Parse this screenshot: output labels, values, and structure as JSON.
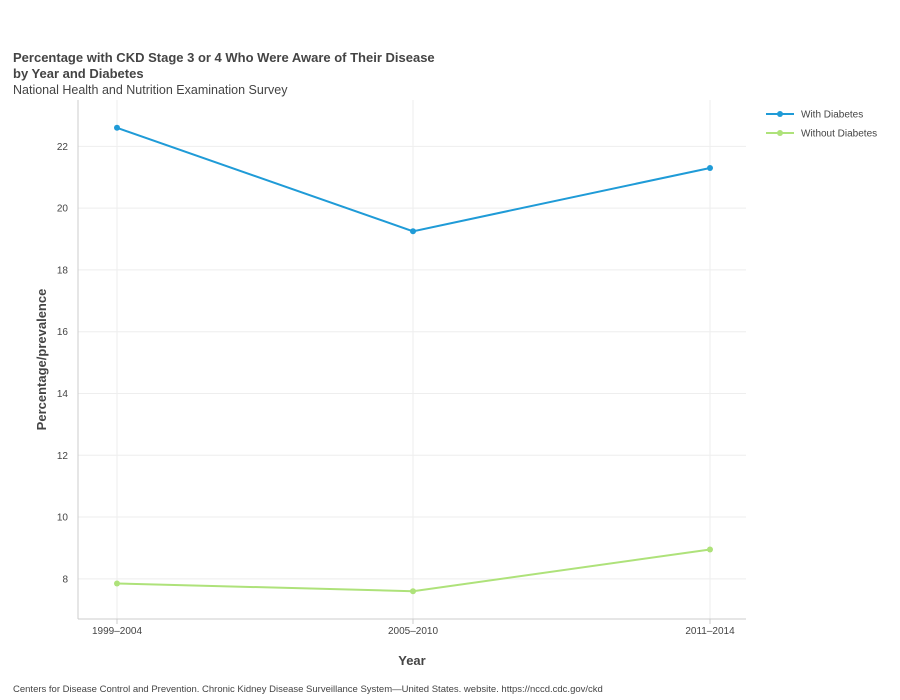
{
  "chart_data": {
    "type": "line",
    "title": "Percentage with CKD Stage 3 or 4 Who Were Aware of Their Disease\nby Year and Diabetes",
    "subtitle": "National Health and Nutrition Examination Survey",
    "xlabel": "Year",
    "ylabel": "Percentage/prevalence",
    "categories": [
      "1999–2004",
      "2005–2010",
      "2011–2014"
    ],
    "series": [
      {
        "name": "With Diabetes",
        "color": "#1f9bd7",
        "values": [
          22.6,
          19.25,
          21.3
        ]
      },
      {
        "name": "Without Diabetes",
        "color": "#aee27a",
        "values": [
          7.85,
          7.6,
          8.95
        ]
      }
    ],
    "ylim": [
      6.7,
      23.5
    ],
    "yticks": [
      8,
      10,
      12,
      14,
      16,
      18,
      20,
      22
    ],
    "grid": true,
    "legend_position": "top-right"
  },
  "source": "Centers for Disease Control and Prevention. Chronic Kidney Disease Surveillance System—United States. website. https://nccd.cdc.gov/ckd"
}
